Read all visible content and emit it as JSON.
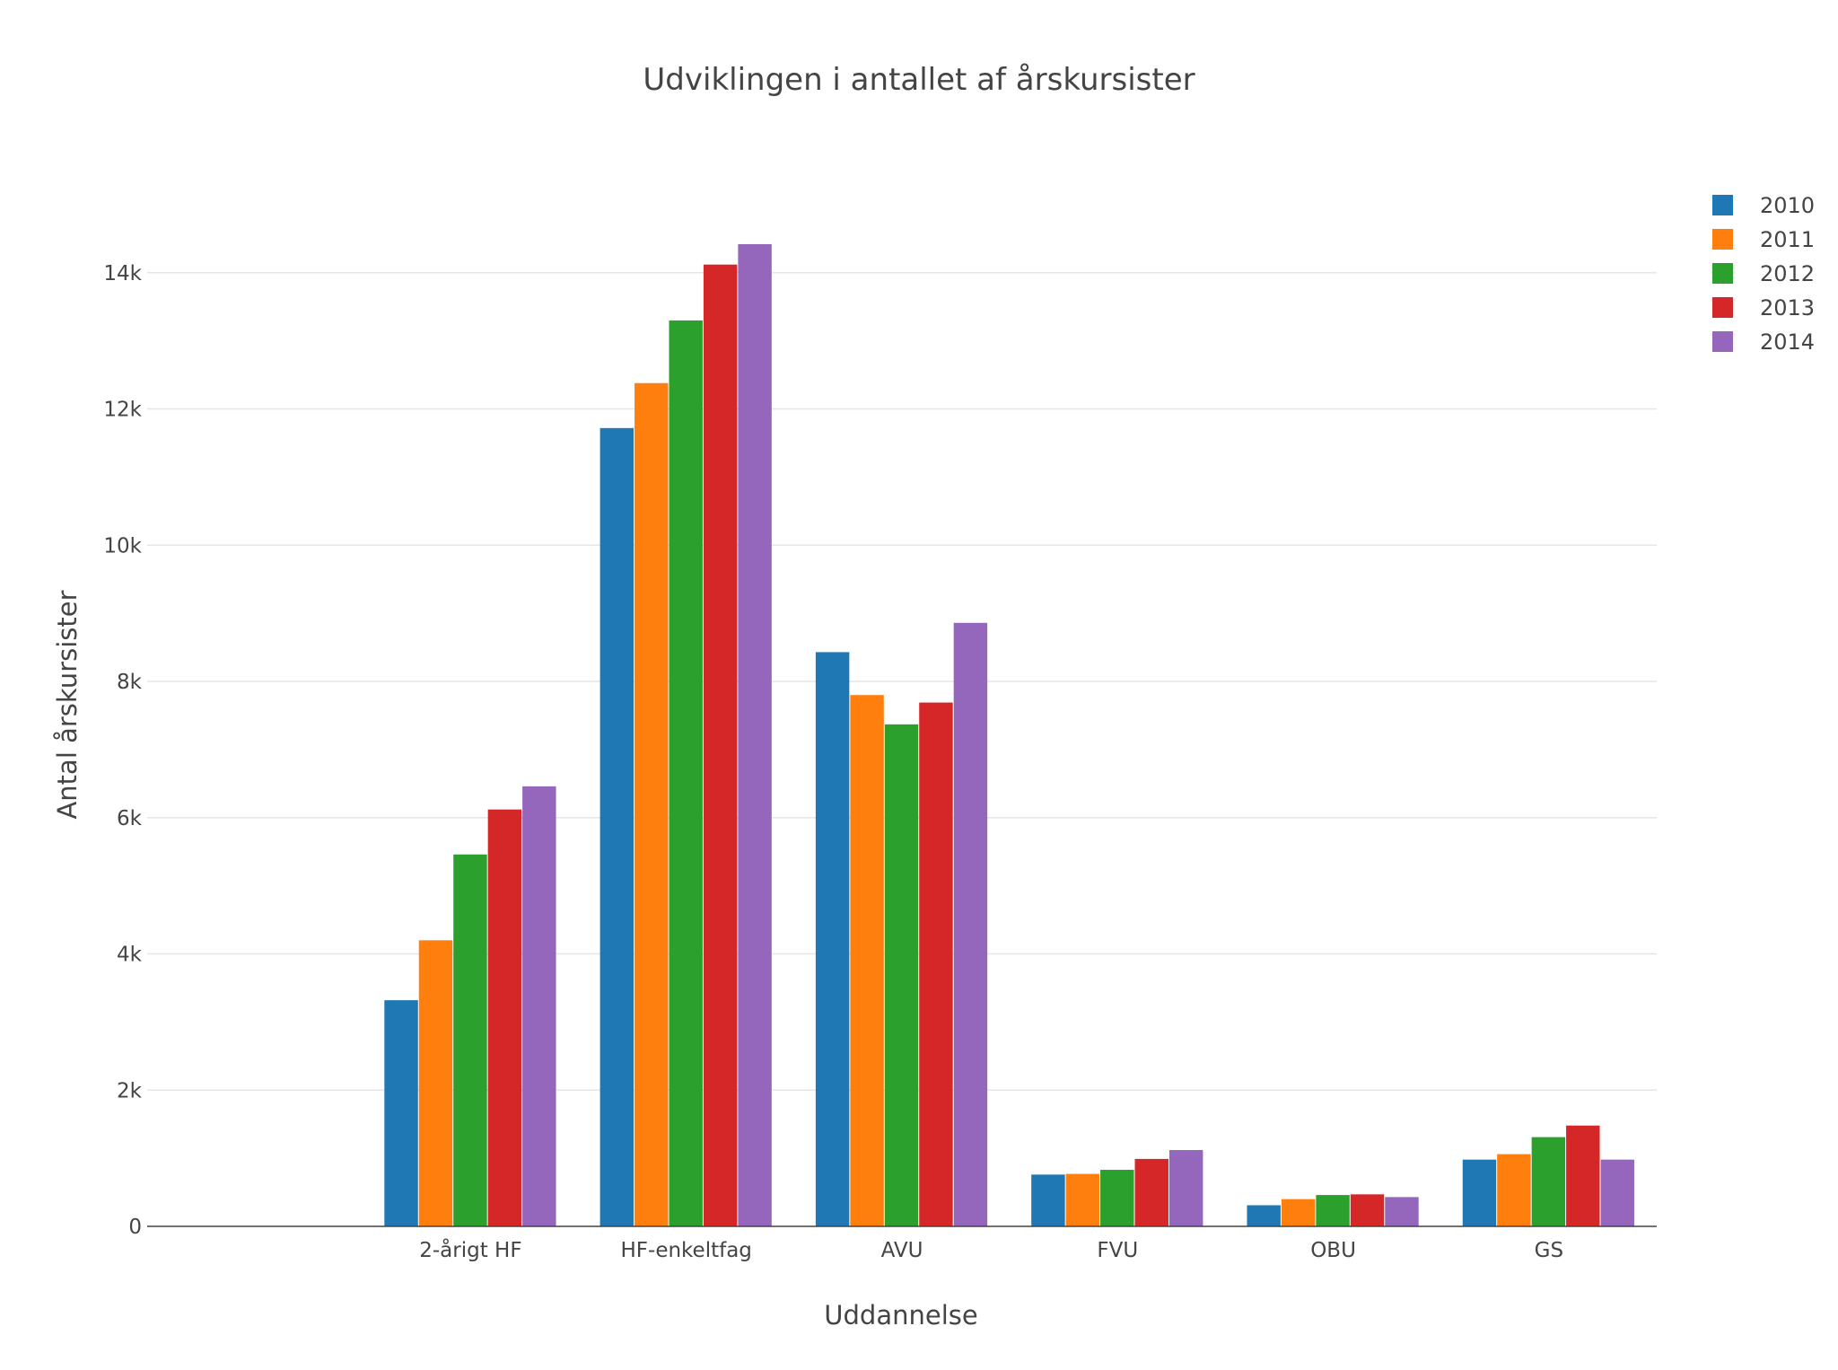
{
  "chart_data": {
    "type": "bar",
    "title": "Udviklingen i antallet af årskursister",
    "xlabel": "Uddannelse",
    "ylabel": "Antal årskursister",
    "categories": [
      "",
      "2-årigt HF",
      "HF-enkeltfag",
      "AVU",
      "FVU",
      "OBU",
      "GS"
    ],
    "ylim": [
      0,
      15500
    ],
    "yticks": [
      0,
      2000,
      4000,
      6000,
      8000,
      10000,
      12000,
      14000
    ],
    "ytick_labels": [
      "0",
      "2k",
      "4k",
      "6k",
      "8k",
      "10k",
      "12k",
      "14k"
    ],
    "grid": true,
    "legend_position": "top-right",
    "series": [
      {
        "name": "2010",
        "color": "#1f77b4",
        "values": [
          null,
          3320,
          11720,
          8430,
          760,
          310,
          980
        ]
      },
      {
        "name": "2011",
        "color": "#ff7f0e",
        "values": [
          null,
          4200,
          12380,
          7800,
          770,
          400,
          1060
        ]
      },
      {
        "name": "2012",
        "color": "#2ca02c",
        "values": [
          null,
          5460,
          13300,
          7370,
          830,
          460,
          1310
        ]
      },
      {
        "name": "2013",
        "color": "#d62728",
        "values": [
          null,
          6120,
          14120,
          7690,
          990,
          470,
          1480
        ]
      },
      {
        "name": "2014",
        "color": "#9467bd",
        "values": [
          null,
          6460,
          14420,
          8860,
          1120,
          430,
          980
        ]
      }
    ]
  }
}
